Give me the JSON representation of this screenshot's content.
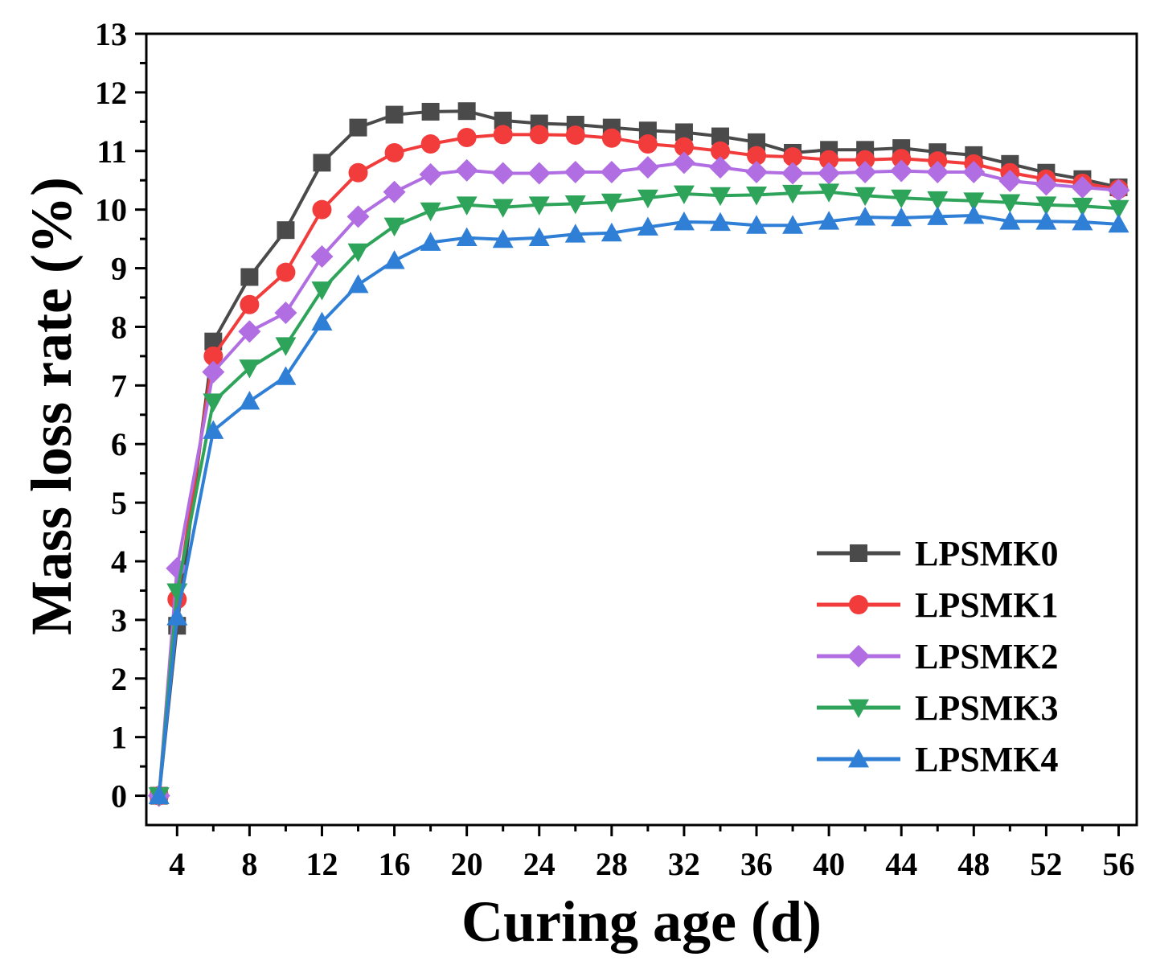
{
  "chart_data": {
    "type": "line",
    "title": "",
    "xlabel": "Curing age (d)",
    "ylabel": "Mass loss rate (%)",
    "xlim": [
      2.3,
      57.0
    ],
    "ylim": [
      -0.5,
      13.0
    ],
    "xticks": [
      4,
      8,
      12,
      16,
      20,
      24,
      28,
      32,
      36,
      40,
      44,
      48,
      52,
      56
    ],
    "yticks": [
      0,
      1,
      2,
      3,
      4,
      5,
      6,
      7,
      8,
      9,
      10,
      11,
      12,
      13
    ],
    "legend_position": "right",
    "grid": false,
    "x": [
      3,
      4,
      6,
      8,
      10,
      12,
      14,
      16,
      18,
      20,
      22,
      24,
      26,
      28,
      30,
      32,
      34,
      36,
      38,
      40,
      42,
      44,
      46,
      48,
      50,
      52,
      54,
      56
    ],
    "series": [
      {
        "name": "LPSMK0",
        "color": "#4a4a4a",
        "marker": "square",
        "values": [
          0,
          2.9,
          7.75,
          8.85,
          9.65,
          10.8,
          11.4,
          11.62,
          11.67,
          11.68,
          11.52,
          11.47,
          11.45,
          11.4,
          11.35,
          11.32,
          11.25,
          11.15,
          10.97,
          11.02,
          11.02,
          11.05,
          10.98,
          10.93,
          10.78,
          10.63,
          10.52,
          10.38
        ]
      },
      {
        "name": "LPSMK1",
        "color": "#f23c3c",
        "marker": "circle",
        "values": [
          0,
          3.35,
          7.5,
          8.38,
          8.93,
          10.0,
          10.63,
          10.97,
          11.12,
          11.23,
          11.28,
          11.28,
          11.27,
          11.22,
          11.12,
          11.07,
          11.0,
          10.92,
          10.9,
          10.85,
          10.85,
          10.87,
          10.83,
          10.78,
          10.63,
          10.52,
          10.45,
          10.35
        ]
      },
      {
        "name": "LPSMK2",
        "color": "#b06ee2",
        "marker": "diamond",
        "values": [
          0,
          3.88,
          7.23,
          7.92,
          8.24,
          9.2,
          9.88,
          10.3,
          10.6,
          10.67,
          10.62,
          10.62,
          10.64,
          10.64,
          10.72,
          10.8,
          10.72,
          10.64,
          10.62,
          10.62,
          10.64,
          10.66,
          10.64,
          10.64,
          10.49,
          10.43,
          10.38,
          10.33
        ]
      },
      {
        "name": "LPSMK3",
        "color": "#2ea35a",
        "marker": "triangle-down",
        "values": [
          0,
          3.48,
          6.72,
          7.3,
          7.68,
          8.63,
          9.28,
          9.72,
          9.98,
          10.08,
          10.04,
          10.08,
          10.1,
          10.13,
          10.2,
          10.27,
          10.24,
          10.25,
          10.28,
          10.3,
          10.24,
          10.2,
          10.17,
          10.15,
          10.12,
          10.08,
          10.06,
          10.02
        ]
      },
      {
        "name": "LPSMK4",
        "color": "#2f7fd6",
        "marker": "triangle-up",
        "values": [
          0,
          3.05,
          6.23,
          6.73,
          7.15,
          8.08,
          8.72,
          9.13,
          9.44,
          9.52,
          9.49,
          9.52,
          9.58,
          9.6,
          9.7,
          9.79,
          9.78,
          9.73,
          9.73,
          9.8,
          9.87,
          9.86,
          9.88,
          9.9,
          9.8,
          9.8,
          9.79,
          9.75
        ]
      }
    ]
  }
}
